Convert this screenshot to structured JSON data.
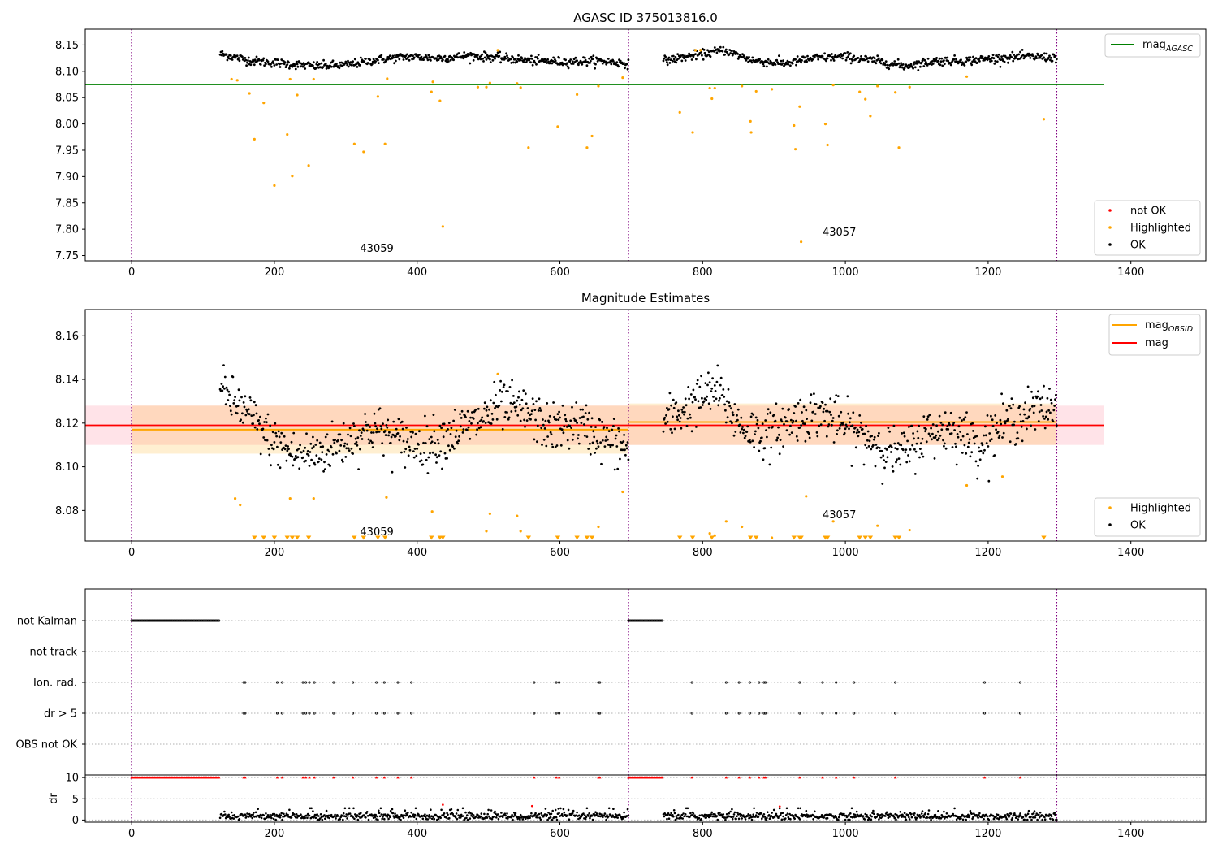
{
  "chart_data": [
    {
      "type": "scatter",
      "title": "AGASC ID 375013816.0",
      "xlabel": "",
      "ylabel": "",
      "xlim": [
        -65,
        1505
      ],
      "ylim": [
        7.74,
        8.18
      ],
      "xticks": [
        0,
        200,
        400,
        600,
        800,
        1000,
        1200,
        1400
      ],
      "yticks": [
        7.75,
        7.8,
        7.85,
        7.9,
        7.95,
        8.0,
        8.05,
        8.1,
        8.15
      ],
      "ytick_labels": [
        "7.75",
        "7.80",
        "7.85",
        "7.90",
        "7.95",
        "8.00",
        "8.05",
        "8.10",
        "8.15"
      ],
      "obsid_boundaries": [
        0,
        696,
        1296
      ],
      "obsid_labels": [
        {
          "text": "43059",
          "x": 320,
          "y": 7.757
        },
        {
          "text": "43057",
          "x": 968,
          "y": 7.788
        }
      ],
      "lines": [
        {
          "name": "mag_AGASC",
          "color": "#008000",
          "y": 8.075,
          "x_range": [
            -65,
            1362
          ]
        }
      ],
      "legend_lines": {
        "position": "upper-right",
        "entries": [
          {
            "main": "mag",
            "sub": "AGASC",
            "color": "#008000"
          }
        ]
      },
      "legend_points": {
        "position": "lower-right",
        "entries": [
          {
            "label": "not OK",
            "color": "#ff0000"
          },
          {
            "label": "Highlighted",
            "color": "#ffa500"
          },
          {
            "label": "OK",
            "color": "#000000"
          }
        ]
      },
      "ok_segments": [
        {
          "x_range": [
            124,
            696
          ],
          "y_levels": [
            8.133,
            8.12,
            8.115,
            8.11,
            8.112,
            8.122,
            8.128,
            8.125,
            8.13,
            8.125,
            8.12,
            8.118,
            8.12,
            8.115
          ]
        },
        {
          "x_range": [
            745,
            1296
          ],
          "y_levels": [
            8.12,
            8.13,
            8.14,
            8.12,
            8.115,
            8.125,
            8.128,
            8.12,
            8.11,
            8.12,
            8.12,
            8.125,
            8.128,
            8.126
          ]
        }
      ],
      "highlighted_points": [
        [
          140,
          8.085
        ],
        [
          148,
          8.083
        ],
        [
          165,
          8.058
        ],
        [
          172,
          7.971
        ],
        [
          185,
          8.04
        ],
        [
          200,
          7.883
        ],
        [
          218,
          7.98
        ],
        [
          222,
          8.085
        ],
        [
          225,
          7.901
        ],
        [
          232,
          8.055
        ],
        [
          248,
          7.921
        ],
        [
          255,
          8.085
        ],
        [
          312,
          7.962
        ],
        [
          325,
          7.947
        ],
        [
          345,
          8.052
        ],
        [
          355,
          7.962
        ],
        [
          358,
          8.086
        ],
        [
          420,
          8.061
        ],
        [
          422,
          8.08
        ],
        [
          432,
          8.044
        ],
        [
          436,
          7.805
        ],
        [
          485,
          8.07
        ],
        [
          497,
          8.07
        ],
        [
          502,
          8.078
        ],
        [
          513,
          8.14
        ],
        [
          540,
          8.077
        ],
        [
          545,
          8.069
        ],
        [
          556,
          7.955
        ],
        [
          597,
          7.995
        ],
        [
          624,
          8.056
        ],
        [
          638,
          7.955
        ],
        [
          645,
          7.977
        ],
        [
          654,
          8.072
        ],
        [
          688,
          8.088
        ],
        [
          768,
          8.022
        ],
        [
          786,
          7.984
        ],
        [
          790,
          8.14
        ],
        [
          797,
          8.14
        ],
        [
          810,
          8.068
        ],
        [
          813,
          8.048
        ],
        [
          817,
          8.068
        ],
        [
          855,
          8.072
        ],
        [
          867,
          8.005
        ],
        [
          868,
          7.984
        ],
        [
          875,
          8.062
        ],
        [
          897,
          8.066
        ],
        [
          928,
          7.997
        ],
        [
          930,
          7.952
        ],
        [
          936,
          8.033
        ],
        [
          938,
          7.776
        ],
        [
          972,
          8.0
        ],
        [
          975,
          7.96
        ],
        [
          983,
          8.074
        ],
        [
          1020,
          8.061
        ],
        [
          1028,
          8.047
        ],
        [
          1035,
          8.015
        ],
        [
          1045,
          8.072
        ],
        [
          1070,
          8.06
        ],
        [
          1075,
          7.955
        ],
        [
          1090,
          8.07
        ],
        [
          1170,
          8.09
        ],
        [
          1278,
          8.009
        ]
      ]
    },
    {
      "type": "scatter",
      "title": "Magnitude Estimates",
      "xlabel": "",
      "ylabel": "",
      "xlim": [
        -65,
        1505
      ],
      "ylim": [
        8.066,
        8.172
      ],
      "xticks": [
        0,
        200,
        400,
        600,
        800,
        1000,
        1200,
        1400
      ],
      "yticks": [
        8.08,
        8.1,
        8.12,
        8.14,
        8.16
      ],
      "ytick_labels": [
        "8.08",
        "8.10",
        "8.12",
        "8.14",
        "8.16"
      ],
      "obsid_boundaries": [
        0,
        696,
        1296
      ],
      "obsid_labels": [
        {
          "text": "43059",
          "x": 320,
          "y": 8.0686
        },
        {
          "text": "43057",
          "x": 968,
          "y": 8.0765
        }
      ],
      "mag": {
        "value": 8.119,
        "band": [
          8.11,
          8.128
        ],
        "x_range": [
          -65,
          1362
        ],
        "color": "#ff0000",
        "band_color": "#ffc0cb"
      },
      "mag_obsid": [
        {
          "x_range": [
            0,
            696
          ],
          "value": 8.117,
          "band": [
            8.106,
            8.128
          ],
          "color": "#ffa500"
        },
        {
          "x_range": [
            696,
            1296
          ],
          "value": 8.1205,
          "band": [
            8.11,
            8.129
          ],
          "color": "#ffa500"
        }
      ],
      "legend_lines": {
        "position": "upper-right",
        "entries": [
          {
            "main": "mag",
            "sub": "OBSID",
            "color": "#ffa500"
          },
          {
            "main": "mag",
            "sub": "",
            "color": "#ff0000"
          }
        ]
      },
      "legend_points": {
        "position": "lower-right",
        "entries": [
          {
            "label": "Highlighted",
            "color": "#ffa500"
          },
          {
            "label": "OK",
            "color": "#000000"
          }
        ]
      },
      "ok_segments": [
        {
          "x_range": [
            124,
            696
          ],
          "y_levels": [
            8.135,
            8.125,
            8.112,
            8.105,
            8.107,
            8.112,
            8.118,
            8.112,
            8.11,
            8.115,
            8.12,
            8.128,
            8.125,
            8.117,
            8.12,
            8.113,
            8.108
          ]
        },
        {
          "x_range": [
            745,
            1296
          ],
          "y_levels": [
            8.12,
            8.128,
            8.135,
            8.118,
            8.115,
            8.122,
            8.125,
            8.118,
            8.112,
            8.105,
            8.115,
            8.118,
            8.11,
            8.12,
            8.125,
            8.128
          ]
        }
      ],
      "highlighted_points": [
        [
          145,
          8.0855
        ],
        [
          152,
          8.0825
        ],
        [
          222,
          8.0855
        ],
        [
          255,
          8.0855
        ],
        [
          357,
          8.086
        ],
        [
          421,
          8.0795
        ],
        [
          497,
          8.0705
        ],
        [
          502,
          8.0785
        ],
        [
          513,
          8.1425
        ],
        [
          540,
          8.0775
        ],
        [
          545,
          8.0705
        ],
        [
          654,
          8.0725
        ],
        [
          688,
          8.0885
        ],
        [
          810,
          8.0695
        ],
        [
          817,
          8.0685
        ],
        [
          833,
          8.075
        ],
        [
          855,
          8.0725
        ],
        [
          897,
          8.0675
        ],
        [
          945,
          8.0865
        ],
        [
          983,
          8.075
        ],
        [
          1045,
          8.073
        ],
        [
          1090,
          8.071
        ],
        [
          1170,
          8.0915
        ],
        [
          1220,
          8.0955
        ]
      ],
      "clipped_markers": [
        172,
        185,
        200,
        218,
        225,
        232,
        248,
        312,
        325,
        345,
        355,
        420,
        432,
        436,
        556,
        597,
        624,
        638,
        645,
        768,
        786,
        813,
        867,
        875,
        928,
        936,
        938,
        972,
        975,
        1020,
        1028,
        1035,
        1070,
        1075,
        1278
      ]
    },
    {
      "type": "scatter",
      "title": "",
      "xlabel": "",
      "ylabel": "",
      "xlim": [
        -65,
        1505
      ],
      "xticks": [
        0,
        200,
        400,
        600,
        800,
        1000,
        1200,
        1400
      ],
      "obsid_boundaries": [
        0,
        696,
        1296
      ],
      "flag_rows": [
        "not Kalman",
        "not track",
        "Ion. rad.",
        "dr > 5",
        "OBS not OK"
      ],
      "flags": {
        "not Kalman": {
          "ranges": [
            [
              0,
              124
            ],
            [
              696,
              745
            ]
          ]
        },
        "not track": {
          "ranges": []
        },
        "Ion. rad.": {
          "points": [
            157,
            159,
            204,
            211,
            240,
            244,
            249,
            256,
            283,
            310,
            343,
            354,
            373,
            392,
            564,
            595,
            599,
            654,
            656,
            785,
            833,
            851,
            866,
            879,
            886,
            888,
            936,
            968,
            987,
            1012,
            1070,
            1195,
            1245
          ]
        },
        "dr > 5": {
          "points": [
            157,
            159,
            204,
            211,
            240,
            244,
            249,
            256,
            283,
            310,
            343,
            354,
            373,
            392,
            564,
            595,
            599,
            654,
            656,
            785,
            833,
            851,
            866,
            879,
            886,
            888,
            936,
            968,
            987,
            1012,
            1070,
            1195,
            1245
          ]
        },
        "OBS not OK": {
          "ranges": []
        }
      }
    },
    {
      "type": "scatter",
      "title": "",
      "xlabel": "",
      "ylabel": "dr",
      "xlim": [
        -65,
        1505
      ],
      "ylim": [
        -0.5,
        10.6
      ],
      "yticks": [
        0,
        5,
        10
      ],
      "xticks": [
        0,
        200,
        400,
        600,
        800,
        1000,
        1200,
        1400
      ],
      "xtick_labels": [
        "0",
        "200",
        "400",
        "600",
        "800",
        "1000",
        "1200",
        "1400"
      ],
      "obsid_boundaries": [
        0,
        696,
        1296
      ],
      "clip_value": 10,
      "clipped_red_ranges": [
        [
          0,
          124
        ],
        [
          696,
          745
        ]
      ],
      "clipped_red_points": [
        157,
        159,
        204,
        211,
        240,
        244,
        249,
        256,
        283,
        310,
        343,
        354,
        373,
        392,
        564,
        595,
        599,
        654,
        656,
        785,
        833,
        851,
        866,
        879,
        886,
        888,
        936,
        968,
        987,
        1012,
        1070,
        1195,
        1245
      ],
      "red_points": [
        [
          436,
          3.6
        ],
        [
          561,
          3.3
        ],
        [
          908,
          3.2
        ]
      ],
      "ok_segments": [
        {
          "x_range": [
            124,
            696
          ],
          "typical": 0.9
        },
        {
          "x_range": [
            745,
            1296
          ],
          "typical": 0.9
        }
      ]
    }
  ]
}
